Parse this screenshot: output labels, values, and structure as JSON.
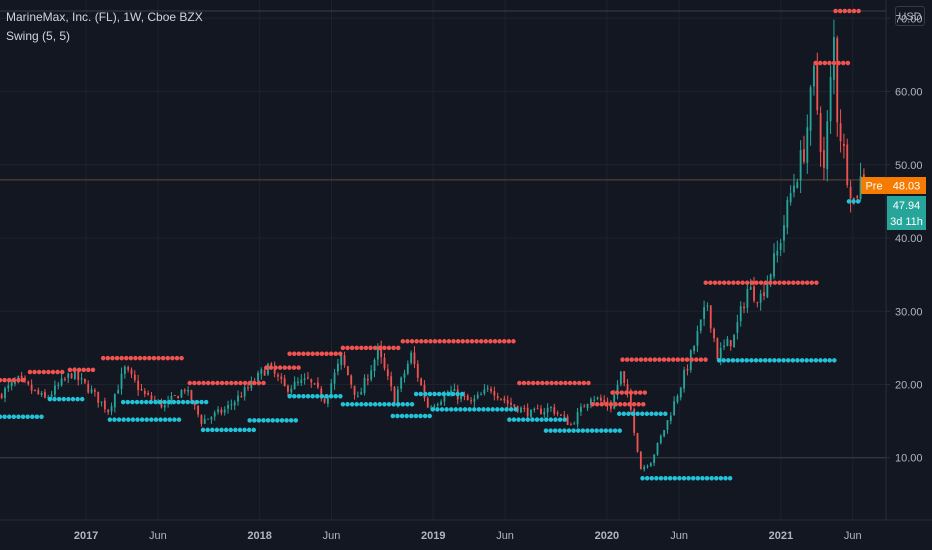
{
  "header": {
    "symbol_line": "MarineMax, Inc. (FL), 1W, Cboe BZX",
    "indicator": "Swing (5, 5)",
    "currency": "USD"
  },
  "badges": {
    "pre_label": "Pre",
    "pre_value": "48.03",
    "last_value": "47.94",
    "countdown": "3d 11h"
  },
  "colors": {
    "background": "#131722",
    "up": "#26a69a",
    "down": "#ef5350",
    "swing_high": "#f05350",
    "swing_low": "#22c3d8",
    "pre_badge": "#f57c00",
    "last_badge": "#26a69a"
  },
  "chart_data": {
    "type": "candlestick",
    "timeframe": "1W",
    "y_axis": {
      "ticks": [
        10,
        20,
        30,
        40,
        50,
        60,
        70
      ],
      "tick_labels": [
        "10.00",
        "20.00",
        "30.00",
        "40.00",
        "50.00",
        "60.00",
        "70.00"
      ],
      "ylim": [
        1.5,
        72.5
      ]
    },
    "x_axis": {
      "tick_labels": [
        "2017",
        "Jun",
        "2018",
        "Jun",
        "2019",
        "Jun",
        "2020",
        "Jun",
        "2021",
        "Jun"
      ],
      "tick_dates": [
        "2017-01-01",
        "2017-06-01",
        "2018-01-01",
        "2018-06-01",
        "2019-01-01",
        "2019-06-01",
        "2020-01-01",
        "2020-06-01",
        "2021-01-01",
        "2021-06-01"
      ],
      "xlim": [
        "2016-07-04",
        "2021-08-10"
      ]
    },
    "horizontal_lines": [
      71.0,
      10.0,
      47.94
    ],
    "price_anchors": [
      [
        "2016-07-04",
        18.5
      ],
      [
        "2016-08-15",
        20.5
      ],
      [
        "2016-10-10",
        18.0
      ],
      [
        "2016-12-05",
        21.5
      ],
      [
        "2017-01-09",
        19.5
      ],
      [
        "2017-02-20",
        16.5
      ],
      [
        "2017-03-27",
        22.0
      ],
      [
        "2017-05-08",
        18.5
      ],
      [
        "2017-06-19",
        17.0
      ],
      [
        "2017-07-31",
        19.5
      ],
      [
        "2017-09-04",
        15.0
      ],
      [
        "2017-10-23",
        16.5
      ],
      [
        "2017-12-11",
        19.5
      ],
      [
        "2018-01-22",
        22.5
      ],
      [
        "2018-02-26",
        19.5
      ],
      [
        "2018-04-16",
        20.5
      ],
      [
        "2018-05-21",
        18.0
      ],
      [
        "2018-06-25",
        23.5
      ],
      [
        "2018-07-30",
        18.0
      ],
      [
        "2018-09-10",
        24.5
      ],
      [
        "2018-10-15",
        18.0
      ],
      [
        "2018-11-19",
        24.0
      ],
      [
        "2018-12-24",
        17.0
      ],
      [
        "2019-02-11",
        19.0
      ],
      [
        "2019-03-25",
        17.5
      ],
      [
        "2019-05-06",
        19.5
      ],
      [
        "2019-06-10",
        17.5
      ],
      [
        "2019-07-29",
        16.0
      ],
      [
        "2019-09-09",
        16.8
      ],
      [
        "2019-10-21",
        14.5
      ],
      [
        "2019-12-02",
        18.5
      ],
      [
        "2020-01-13",
        17.0
      ],
      [
        "2020-02-03",
        21.5
      ],
      [
        "2020-02-24",
        16.5
      ],
      [
        "2020-03-16",
        8.5
      ],
      [
        "2020-04-06",
        9.5
      ],
      [
        "2020-05-11",
        15.0
      ],
      [
        "2020-06-22",
        22.5
      ],
      [
        "2020-08-03",
        31.0
      ],
      [
        "2020-08-24",
        24.0
      ],
      [
        "2020-09-28",
        26.5
      ],
      [
        "2020-10-26",
        33.0
      ],
      [
        "2020-11-23",
        32.0
      ],
      [
        "2020-12-28",
        38.0
      ],
      [
        "2021-01-25",
        46.0
      ],
      [
        "2021-02-22",
        52.0
      ],
      [
        "2021-03-15",
        62.0
      ],
      [
        "2021-04-05",
        49.0
      ],
      [
        "2021-04-26",
        67.0
      ],
      [
        "2021-05-03",
        57.0
      ],
      [
        "2021-05-24",
        49.0
      ],
      [
        "2021-06-07",
        45.0
      ],
      [
        "2021-06-21",
        47.94
      ]
    ],
    "swing_highs": [
      {
        "from": "2016-07-04",
        "to": "2016-08-29",
        "value": 20.6
      },
      {
        "from": "2016-09-05",
        "to": "2016-11-21",
        "value": 21.7
      },
      {
        "from": "2016-11-28",
        "to": "2017-01-23",
        "value": 22.0
      },
      {
        "from": "2017-02-06",
        "to": "2017-07-24",
        "value": 23.6
      },
      {
        "from": "2017-08-07",
        "to": "2018-01-15",
        "value": 20.2
      },
      {
        "from": "2018-01-15",
        "to": "2018-03-26",
        "value": 22.3
      },
      {
        "from": "2018-03-05",
        "to": "2018-06-25",
        "value": 24.2
      },
      {
        "from": "2018-06-25",
        "to": "2018-10-29",
        "value": 25.0
      },
      {
        "from": "2018-10-29",
        "to": "2019-06-24",
        "value": 25.9
      },
      {
        "from": "2019-07-01",
        "to": "2019-11-25",
        "value": 20.2
      },
      {
        "from": "2019-12-02",
        "to": "2020-03-23",
        "value": 17.3
      },
      {
        "from": "2020-01-13",
        "to": "2020-03-30",
        "value": 18.9
      },
      {
        "from": "2020-02-03",
        "to": "2020-07-27",
        "value": 23.4
      },
      {
        "from": "2020-07-27",
        "to": "2021-03-22",
        "value": 33.9
      },
      {
        "from": "2021-03-15",
        "to": "2021-05-31",
        "value": 63.9
      },
      {
        "from": "2021-04-26",
        "to": "2021-06-14",
        "value": 71.0
      }
    ],
    "swing_lows": [
      {
        "from": "2016-07-04",
        "to": "2016-10-03",
        "value": 15.6
      },
      {
        "from": "2016-10-17",
        "to": "2016-12-26",
        "value": 18.0
      },
      {
        "from": "2017-02-20",
        "to": "2017-07-17",
        "value": 15.2
      },
      {
        "from": "2017-03-20",
        "to": "2017-09-11",
        "value": 17.6
      },
      {
        "from": "2017-09-04",
        "to": "2017-12-25",
        "value": 13.8
      },
      {
        "from": "2017-12-11",
        "to": "2018-03-26",
        "value": 15.1
      },
      {
        "from": "2018-03-05",
        "to": "2018-06-25",
        "value": 18.4
      },
      {
        "from": "2018-06-25",
        "to": "2018-11-26",
        "value": 17.3
      },
      {
        "from": "2018-10-08",
        "to": "2018-12-31",
        "value": 15.7
      },
      {
        "from": "2018-11-26",
        "to": "2019-03-04",
        "value": 18.7
      },
      {
        "from": "2018-12-31",
        "to": "2019-06-24",
        "value": 16.6
      },
      {
        "from": "2019-06-10",
        "to": "2019-10-14",
        "value": 15.2
      },
      {
        "from": "2019-08-26",
        "to": "2020-02-03",
        "value": 13.7
      },
      {
        "from": "2020-01-27",
        "to": "2020-05-04",
        "value": 16.0
      },
      {
        "from": "2020-03-16",
        "to": "2020-09-21",
        "value": 7.2
      },
      {
        "from": "2020-08-24",
        "to": "2021-04-26",
        "value": 23.3
      },
      {
        "from": "2021-05-24",
        "to": "2021-06-14",
        "value": 45.0
      }
    ]
  }
}
